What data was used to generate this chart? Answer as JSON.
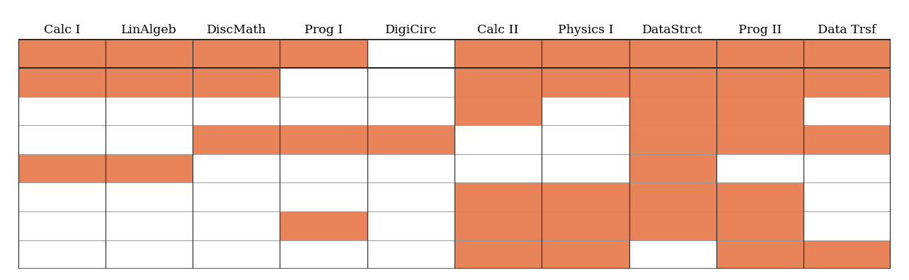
{
  "columns": [
    "Calc I",
    "LinAlgeb",
    "DiscMath",
    "Prog I",
    "DigiCirc",
    "Calc II",
    "Physics I",
    "DataStrct",
    "Prog II",
    "Data Trsf"
  ],
  "n_rows": 8,
  "n_cols": 10,
  "orange_cells": [
    [
      0,
      1,
      2,
      3,
      5,
      6,
      7,
      8,
      9
    ],
    [
      0,
      1,
      2,
      5,
      6,
      7,
      8,
      9
    ],
    [
      5,
      7,
      8
    ],
    [
      2,
      3,
      4,
      7,
      8,
      9
    ],
    [
      0,
      1,
      7
    ],
    [
      5,
      6,
      7,
      8
    ],
    [
      3,
      5,
      6,
      7,
      8
    ],
    [
      5,
      6,
      8,
      9
    ]
  ],
  "orange_color": "#E8845A",
  "white_color": "#FFFFFF",
  "bg_color": "#FFFFFF",
  "header_fontsize": 12.5,
  "header_font": "DejaVu Serif"
}
